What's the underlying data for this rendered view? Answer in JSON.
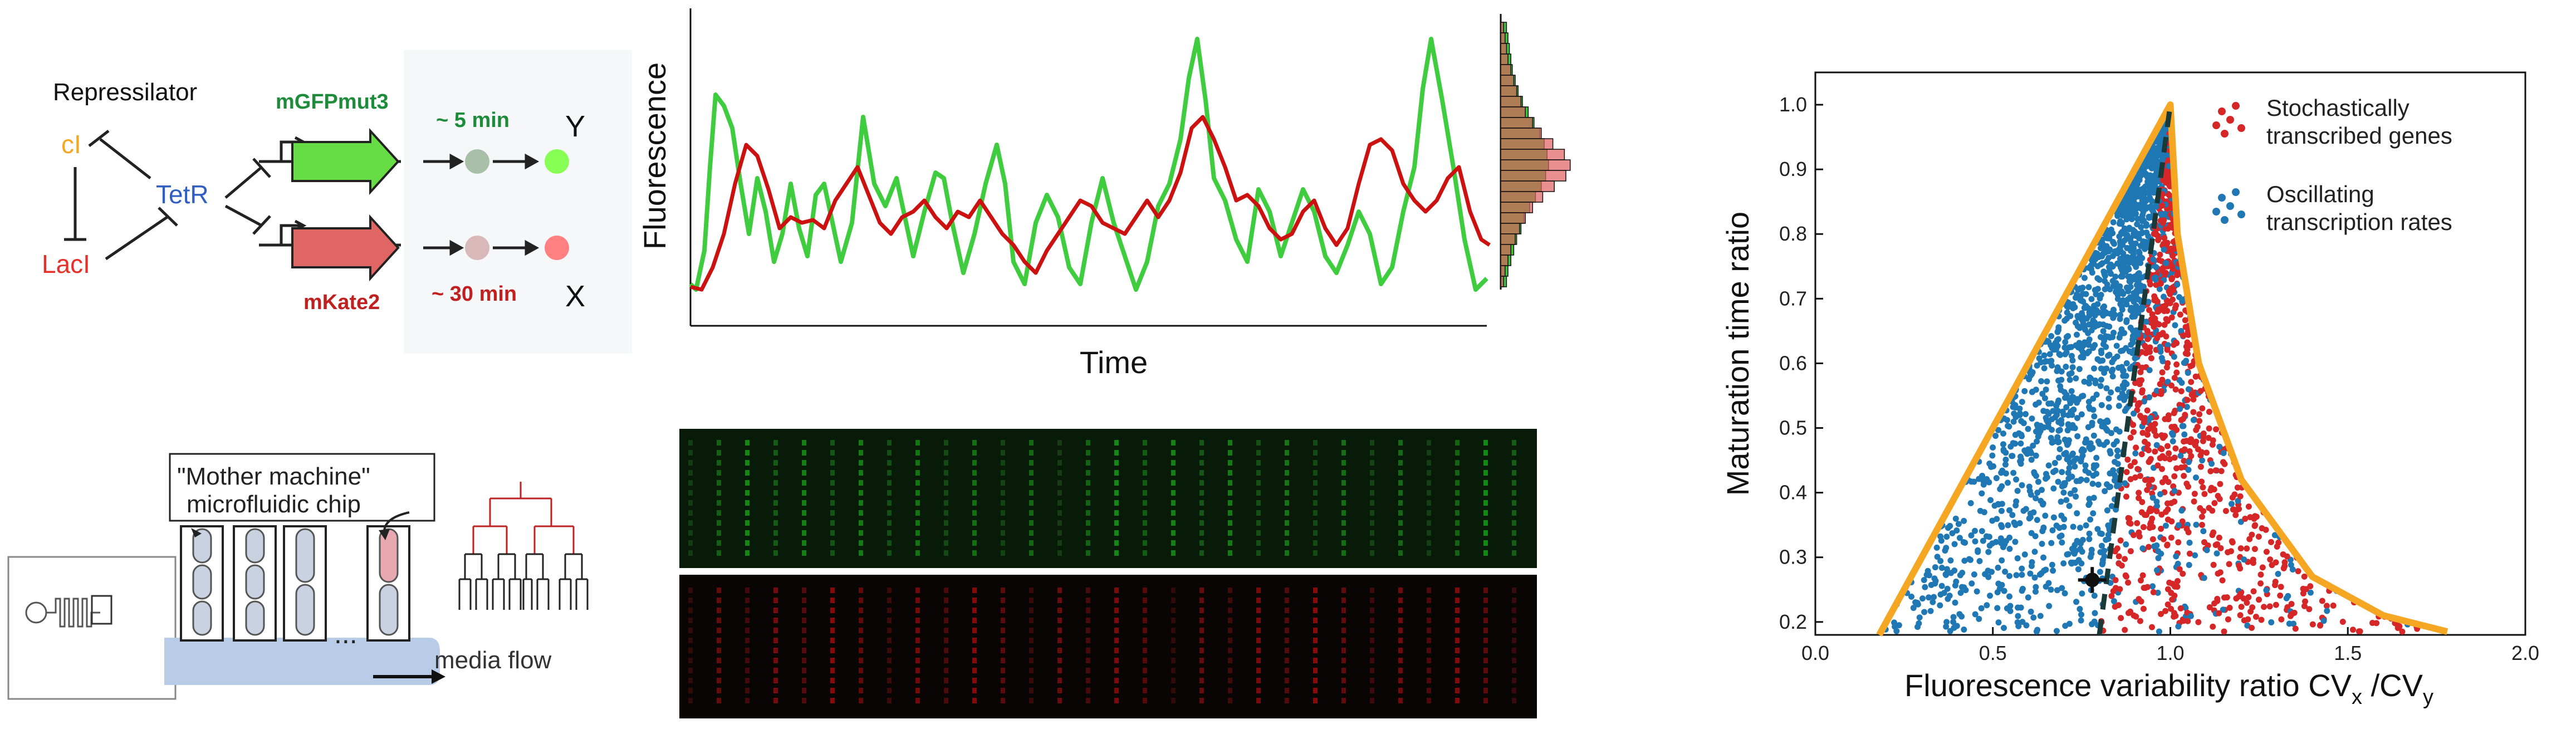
{
  "circuit": {
    "title": "Repressilator",
    "gene_ci": "cI",
    "gene_laci": "LacI",
    "gene_tetr": "TetR",
    "reporter_green": "mGFPmut3",
    "reporter_red": "mKate2",
    "time_green": "~ 5 min",
    "time_red": "~ 30 min",
    "label_y": "Y",
    "label_x": "X",
    "colors": {
      "ci": "#f5a623",
      "laci": "#e8302a",
      "tetr": "#2f5fc0",
      "green": "#1f8c3c",
      "red": "#c0201f"
    }
  },
  "chip": {
    "title_line1": "\"Mother machine\"",
    "title_line2": "microfluidic chip",
    "ellipsis": "...",
    "flow_label": "media flow"
  },
  "trace": {
    "ylabel": "Fluorescence",
    "xlabel": "Time"
  },
  "scatter": {
    "ylabel": "Maturation time ratio",
    "xlabel_main": "Fluorescence variability ratio CV",
    "xlabel_sub1": "x",
    "xlabel_mid": " /CV",
    "xlabel_sub2": "y",
    "legend_red": [
      "Stochastically",
      "transcribed genes"
    ],
    "legend_blue": [
      "Oscillating",
      "transcription rates"
    ]
  },
  "chart_data": {
    "type": "scatter",
    "xlabel": "Fluorescence variability ratio CVx /CVy",
    "ylabel": "Maturation time ratio",
    "xlim": [
      0.0,
      2.0
    ],
    "ylim": [
      0.18,
      1.05
    ],
    "xticks": [
      "0.0",
      "0.5",
      "1.0",
      "1.5",
      "2.0"
    ],
    "yticks": [
      "0.2",
      "0.3",
      "0.4",
      "0.5",
      "0.6",
      "0.7",
      "0.8",
      "0.9",
      "1.0"
    ],
    "series": [
      {
        "name": "Stochastically transcribed genes",
        "color": "#d62728"
      },
      {
        "name": "Oscillating transcription rates",
        "color": "#1f77b4"
      }
    ],
    "boundary_color": "#ffa500",
    "boundary_left": [
      [
        0.18,
        0.18
      ],
      [
        1.0,
        1.0
      ]
    ],
    "boundary_right": [
      [
        1.0,
        1.0
      ],
      [
        1.02,
        0.8
      ],
      [
        1.08,
        0.6
      ],
      [
        1.2,
        0.42
      ],
      [
        1.4,
        0.27
      ],
      [
        1.6,
        0.21
      ],
      [
        1.78,
        0.185
      ]
    ],
    "dashed_divider": [
      [
        0.8,
        0.18
      ],
      [
        1.0,
        1.0
      ]
    ],
    "measured_point": {
      "x": 0.78,
      "y": 0.265,
      "xerr": 0.04,
      "yerr": 0.02
    }
  }
}
